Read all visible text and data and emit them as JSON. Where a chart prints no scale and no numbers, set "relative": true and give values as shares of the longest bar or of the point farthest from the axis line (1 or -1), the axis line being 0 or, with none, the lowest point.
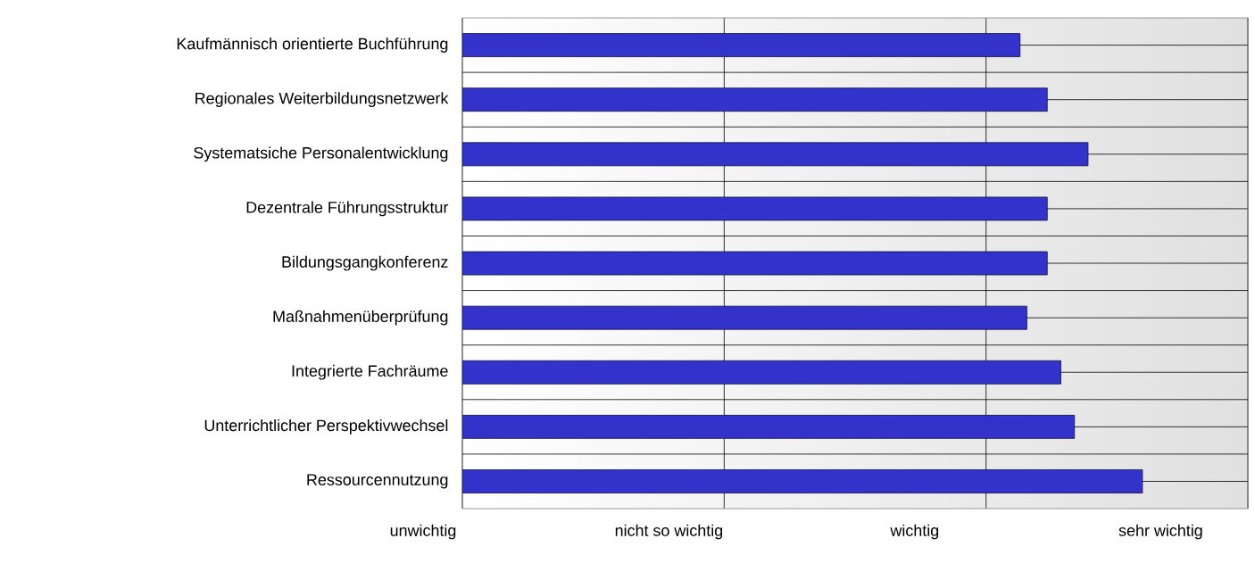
{
  "chart_data": {
    "type": "bar",
    "orientation": "horizontal",
    "relative": true,
    "categories": [
      "Kaufmännisch orientierte Buchführung",
      "Regionales Weiterbildungsnetzwerk",
      "Systematsiche Personalentwicklung",
      "Dezentrale Führungsstruktur",
      "Bildungsgangkonferenz",
      "Maßnahmenüberprüfung",
      "Integrierte Fachräume",
      "Unterrichtlicher Perspektivwechsel",
      "Ressourcennutzung"
    ],
    "values": [
      0.82,
      0.86,
      0.92,
      0.86,
      0.86,
      0.83,
      0.88,
      0.9,
      1
    ],
    "color": "#3333cc",
    "annotations": [
      "unwichtig",
      "nicht so wichtig",
      "wichtig",
      "sehr wichtig"
    ],
    "grid": true
  }
}
